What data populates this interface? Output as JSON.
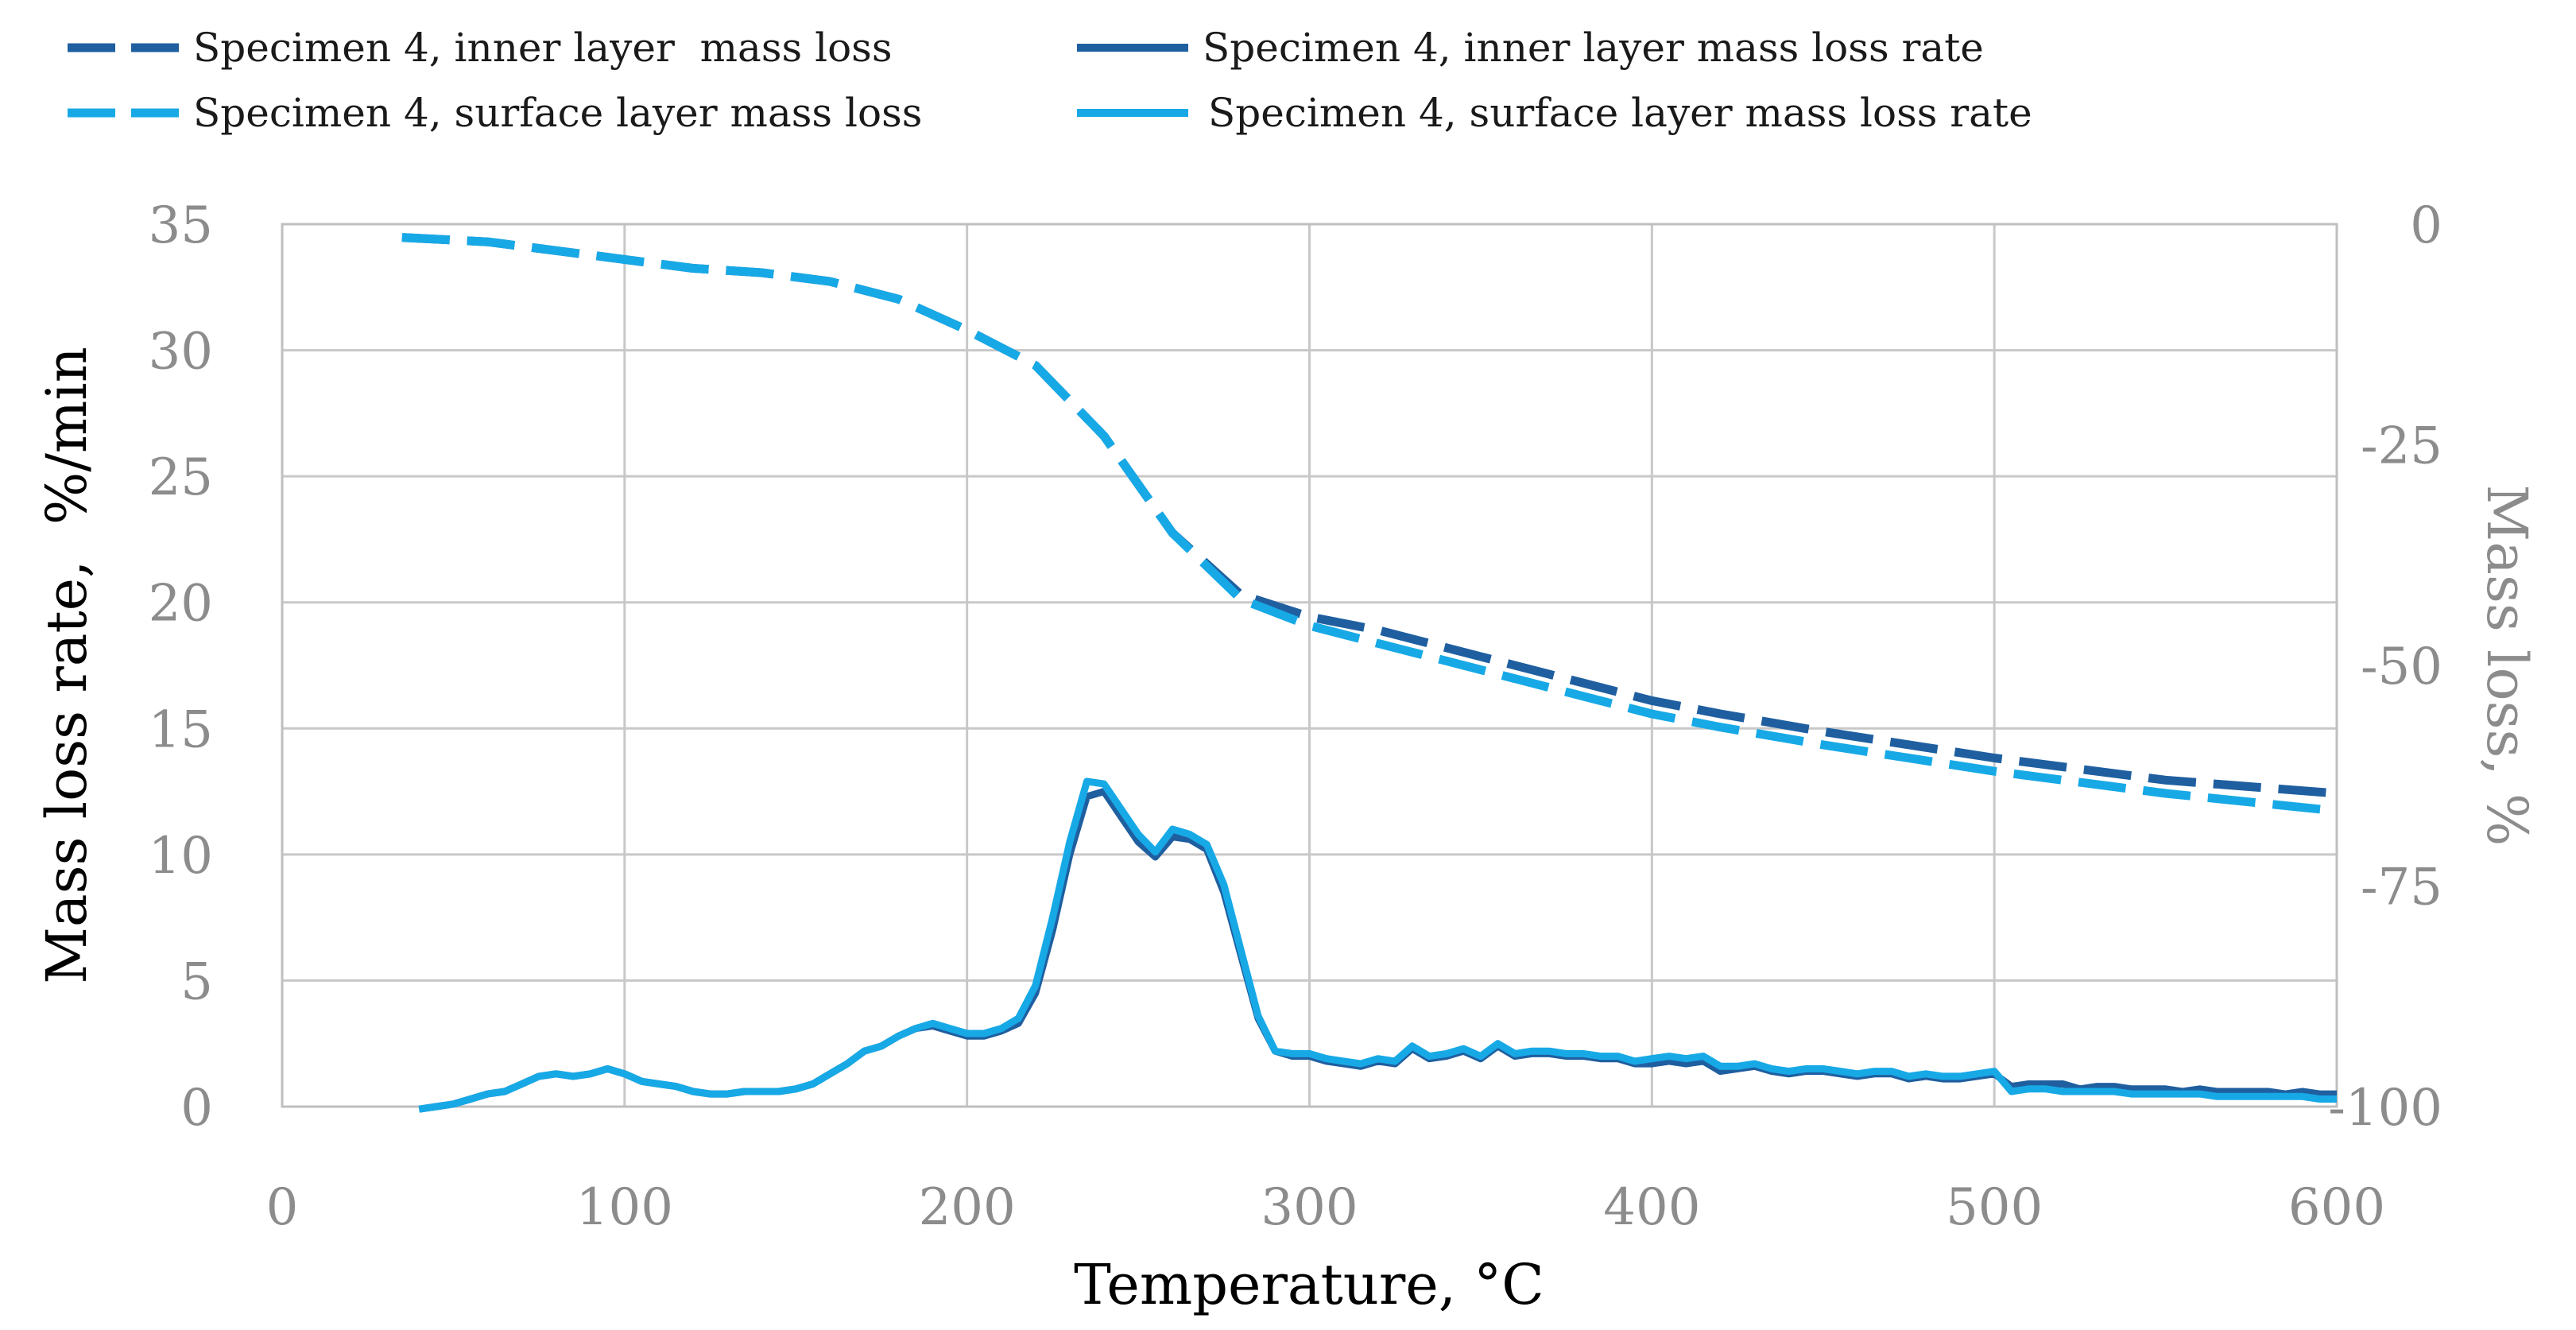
{
  "chart_data": {
    "type": "line",
    "title": "",
    "xlabel": "Temperature, °C",
    "ylabel_left": "Mass loss rate,  %/min",
    "ylabel_right": "Mass loss, %",
    "xlim": [
      0,
      600
    ],
    "ylim_left": [
      0,
      35
    ],
    "ylim_right": [
      -100,
      0
    ],
    "x_ticks": [
      "0",
      "100",
      "200",
      "300",
      "400",
      "500",
      "600"
    ],
    "y_left_ticks": [
      "0",
      "5",
      "10",
      "15",
      "20",
      "25",
      "30",
      "35"
    ],
    "y_right_ticks": [
      "0",
      "-25",
      "-50",
      "-75",
      "-100"
    ],
    "grid": true,
    "legend_position": "top",
    "colors": {
      "inner": "#1f5fa0",
      "surface": "#17a9e6",
      "grid": "#c8c8c8",
      "axis_text": "#8c8c8c"
    },
    "series": [
      {
        "name": "Specimen 4, inner layer  mass loss",
        "axis": "right",
        "style": "dashed",
        "color": "#1f5fa0",
        "x": [
          35,
          60,
          80,
          100,
          120,
          140,
          160,
          180,
          200,
          220,
          240,
          260,
          280,
          300,
          320,
          350,
          380,
          400,
          420,
          450,
          500,
          550,
          600
        ],
        "y": [
          -1.5,
          -2,
          -3,
          -4,
          -5,
          -5.5,
          -6.5,
          -8.5,
          -12,
          -16,
          -24,
          -35,
          -42,
          -44.5,
          -46,
          -49,
          -52,
          -54,
          -55.5,
          -57.5,
          -60.5,
          -63,
          -64.5
        ]
      },
      {
        "name": "Specimen 4, surface layer mass loss",
        "axis": "right",
        "style": "dashed",
        "color": "#17a9e6",
        "x": [
          35,
          60,
          80,
          100,
          120,
          140,
          160,
          180,
          200,
          220,
          240,
          260,
          280,
          300,
          320,
          350,
          380,
          400,
          420,
          450,
          500,
          550,
          600
        ],
        "y": [
          -1.5,
          -2,
          -3,
          -4,
          -5,
          -5.5,
          -6.5,
          -8.5,
          -12,
          -16,
          -24,
          -35,
          -42.5,
          -45.5,
          -47.5,
          -50.5,
          -53.5,
          -55.5,
          -57,
          -59,
          -62,
          -64.5,
          -66.5
        ]
      },
      {
        "name": "Specimen 4, inner layer mass loss rate",
        "axis": "left",
        "style": "solid",
        "color": "#1f5fa0",
        "x": [
          40,
          45,
          50,
          55,
          60,
          65,
          70,
          75,
          80,
          85,
          90,
          95,
          100,
          105,
          110,
          115,
          120,
          125,
          130,
          135,
          140,
          145,
          150,
          155,
          160,
          165,
          170,
          175,
          180,
          185,
          190,
          195,
          200,
          205,
          210,
          215,
          220,
          225,
          230,
          235,
          240,
          245,
          250,
          255,
          260,
          265,
          270,
          275,
          280,
          285,
          290,
          295,
          300,
          305,
          310,
          315,
          320,
          325,
          330,
          335,
          340,
          345,
          350,
          355,
          360,
          365,
          370,
          375,
          380,
          385,
          390,
          395,
          400,
          405,
          410,
          415,
          420,
          425,
          430,
          435,
          440,
          445,
          450,
          455,
          460,
          465,
          470,
          475,
          480,
          485,
          490,
          495,
          500,
          505,
          510,
          515,
          520,
          525,
          530,
          535,
          540,
          545,
          550,
          555,
          560,
          565,
          570,
          575,
          580,
          585,
          590,
          595,
          600
        ],
        "y": [
          -0.1,
          0,
          0.1,
          0.3,
          0.5,
          0.6,
          0.9,
          1.2,
          1.3,
          1.2,
          1.3,
          1.5,
          1.3,
          1,
          0.9,
          0.8,
          0.6,
          0.5,
          0.5,
          0.6,
          0.6,
          0.6,
          0.7,
          0.9,
          1.3,
          1.7,
          2.2,
          2.4,
          2.8,
          3.1,
          3.2,
          3,
          2.8,
          2.8,
          3,
          3.3,
          4.5,
          7,
          10,
          12.3,
          12.5,
          11.5,
          10.5,
          9.9,
          10.7,
          10.6,
          10.2,
          8.5,
          6,
          3.5,
          2.2,
          2,
          2,
          1.8,
          1.7,
          1.6,
          1.8,
          1.7,
          2.3,
          1.9,
          2,
          2.2,
          1.9,
          2.4,
          2,
          2.1,
          2.1,
          2,
          2,
          1.9,
          1.9,
          1.7,
          1.7,
          1.8,
          1.7,
          1.8,
          1.4,
          1.5,
          1.6,
          1.4,
          1.3,
          1.4,
          1.4,
          1.3,
          1.2,
          1.3,
          1.3,
          1.1,
          1.2,
          1.1,
          1.1,
          1.2,
          1.3,
          0.8,
          0.9,
          0.9,
          0.9,
          0.7,
          0.8,
          0.8,
          0.7,
          0.7,
          0.7,
          0.6,
          0.7,
          0.6,
          0.6,
          0.6,
          0.6,
          0.5,
          0.6,
          0.5,
          0.5
        ]
      },
      {
        "name": "Specimen 4, surface layer mass loss rate",
        "axis": "left",
        "style": "solid",
        "color": "#17a9e6",
        "x": [
          40,
          45,
          50,
          55,
          60,
          65,
          70,
          75,
          80,
          85,
          90,
          95,
          100,
          105,
          110,
          115,
          120,
          125,
          130,
          135,
          140,
          145,
          150,
          155,
          160,
          165,
          170,
          175,
          180,
          185,
          190,
          195,
          200,
          205,
          210,
          215,
          220,
          225,
          230,
          235,
          240,
          245,
          250,
          255,
          260,
          265,
          270,
          275,
          280,
          285,
          290,
          295,
          300,
          305,
          310,
          315,
          320,
          325,
          330,
          335,
          340,
          345,
          350,
          355,
          360,
          365,
          370,
          375,
          380,
          385,
          390,
          395,
          400,
          405,
          410,
          415,
          420,
          425,
          430,
          435,
          440,
          445,
          450,
          455,
          460,
          465,
          470,
          475,
          480,
          485,
          490,
          495,
          500,
          505,
          510,
          515,
          520,
          525,
          530,
          535,
          540,
          545,
          550,
          555,
          560,
          565,
          570,
          575,
          580,
          585,
          590,
          595,
          600
        ],
        "y": [
          -0.1,
          0,
          0.1,
          0.3,
          0.5,
          0.6,
          0.9,
          1.2,
          1.3,
          1.2,
          1.3,
          1.5,
          1.3,
          1,
          0.9,
          0.8,
          0.6,
          0.5,
          0.5,
          0.6,
          0.6,
          0.6,
          0.7,
          0.9,
          1.3,
          1.7,
          2.2,
          2.4,
          2.8,
          3.1,
          3.3,
          3.1,
          2.9,
          2.9,
          3.1,
          3.5,
          4.8,
          7.5,
          10.5,
          12.9,
          12.8,
          11.8,
          10.8,
          10.1,
          11,
          10.8,
          10.4,
          8.8,
          6.2,
          3.6,
          2.2,
          2.1,
          2.1,
          1.9,
          1.8,
          1.7,
          1.9,
          1.8,
          2.4,
          2,
          2.1,
          2.3,
          2,
          2.5,
          2.1,
          2.2,
          2.2,
          2.1,
          2.1,
          2,
          2,
          1.8,
          1.9,
          2,
          1.9,
          2,
          1.6,
          1.6,
          1.7,
          1.5,
          1.4,
          1.5,
          1.5,
          1.4,
          1.3,
          1.4,
          1.4,
          1.2,
          1.3,
          1.2,
          1.2,
          1.3,
          1.4,
          0.6,
          0.7,
          0.7,
          0.6,
          0.6,
          0.6,
          0.6,
          0.5,
          0.5,
          0.5,
          0.5,
          0.5,
          0.4,
          0.4,
          0.4,
          0.4,
          0.4,
          0.4,
          0.3,
          0.3
        ]
      }
    ]
  }
}
